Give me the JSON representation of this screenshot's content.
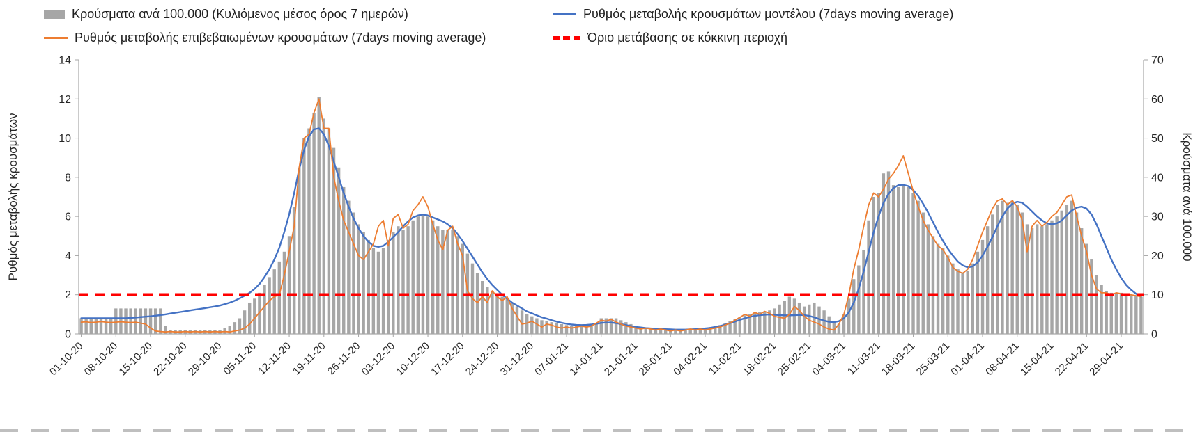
{
  "chart_data": {
    "type": "bar",
    "title": "",
    "days_per_tick": 7,
    "x_tick_labels": [
      "01-10-20",
      "08-10-20",
      "15-10-20",
      "22-10-20",
      "29-10-20",
      "05-11-20",
      "12-11-20",
      "19-11-20",
      "26-11-20",
      "03-12-20",
      "10-12-20",
      "17-12-20",
      "24-12-20",
      "31-12-20",
      "07-01-21",
      "14-01-21",
      "21-01-21",
      "28-01-21",
      "04-02-21",
      "11-02-21",
      "18-02-21",
      "25-02-21",
      "04-03-21",
      "11-03-21",
      "18-03-21",
      "25-03-21",
      "01-04-21",
      "08-04-21",
      "15-04-21",
      "22-04-21",
      "29-04-21"
    ],
    "left_axis": {
      "label": "Ρυθμός μεταβολής κρουσμάτων",
      "min": 0,
      "max": 14,
      "step": 2
    },
    "right_axis": {
      "label": "Κρούσματα ανά 100.000",
      "min": 0,
      "max": 70,
      "step": 10
    },
    "grid": false,
    "legend_position": "top",
    "series": [
      {
        "name": "Κρούσματα ανά 100.000 (Κυλιόμενος μέσος όρος 7 ημερών)",
        "type": "bar",
        "axis": "right",
        "color": "#a6a6a6",
        "values": [
          4,
          4,
          4,
          4,
          4,
          4,
          4,
          6.5,
          6.5,
          6.5,
          6.5,
          6.5,
          6.5,
          6.5,
          6.5,
          6.5,
          6.5,
          2,
          1,
          1,
          1,
          1,
          1,
          1,
          1,
          1,
          1,
          1,
          1,
          1.5,
          2,
          3,
          4,
          6,
          8,
          9,
          10.5,
          12.5,
          14.5,
          16.5,
          18.5,
          21,
          25,
          32.5,
          42.5,
          50,
          52.5,
          56.5,
          60.5,
          55,
          52.5,
          47.5,
          42.5,
          37.5,
          34,
          31,
          28,
          26,
          24,
          22,
          21,
          22,
          24,
          26,
          27.5,
          26.5,
          27.5,
          29,
          30,
          30.5,
          30,
          29,
          27.5,
          26.5,
          26.5,
          26.5,
          25,
          23,
          20.5,
          18,
          15.5,
          13.5,
          12,
          11,
          10,
          9.5,
          9,
          8,
          7,
          6,
          5,
          4.5,
          4,
          3.5,
          3.25,
          3,
          2.75,
          2.5,
          2.25,
          2.1,
          2,
          2.1,
          2.25,
          2.5,
          2.75,
          4,
          4,
          4,
          4,
          3.5,
          3,
          2.5,
          2,
          1.75,
          1.5,
          1.4,
          1.3,
          1.25,
          1.2,
          1.1,
          1,
          1,
          1.1,
          1.25,
          1.4,
          1.5,
          1.5,
          1.75,
          2,
          2.25,
          2.75,
          3.25,
          3.75,
          4.25,
          4.75,
          5,
          5.25,
          5.5,
          5.75,
          6,
          6.5,
          7.5,
          8.5,
          9.5,
          9,
          8,
          7,
          7.5,
          8,
          7,
          6,
          4.5,
          3,
          2.5,
          5,
          9,
          14,
          17.5,
          21.5,
          29,
          35,
          36,
          41,
          41.5,
          38,
          37.5,
          38,
          37.5,
          36,
          34,
          31,
          28,
          25,
          23,
          22,
          20,
          18,
          16.5,
          15.5,
          16,
          18,
          21,
          24,
          27.5,
          30.5,
          33,
          34,
          33.5,
          34,
          33,
          31,
          28,
          27,
          28,
          27.5,
          28,
          29,
          30,
          31.5,
          33,
          34,
          31,
          27,
          23,
          19,
          15,
          12.5,
          11,
          10.5,
          10.5,
          10.5,
          10,
          10,
          9.75,
          9.5
        ]
      },
      {
        "name": "Ρυθμός μεταβολής κρουσμάτων μοντέλου (7days moving average)",
        "type": "line",
        "axis": "left",
        "color": "#4472c4",
        "values": [
          0.8,
          0.8,
          0.8,
          0.8,
          0.8,
          0.8,
          0.8,
          0.8,
          0.8,
          0.8,
          0.82,
          0.84,
          0.86,
          0.88,
          0.9,
          0.93,
          0.96,
          1.0,
          1.04,
          1.08,
          1.12,
          1.16,
          1.2,
          1.24,
          1.28,
          1.32,
          1.36,
          1.4,
          1.45,
          1.52,
          1.6,
          1.7,
          1.82,
          1.95,
          2.1,
          2.3,
          2.55,
          2.9,
          3.3,
          3.8,
          4.4,
          5.2,
          6.1,
          7.2,
          8.4,
          9.4,
          10.1,
          10.45,
          10.5,
          10.2,
          9.6,
          8.8,
          8.0,
          7.2,
          6.5,
          5.9,
          5.4,
          5.0,
          4.7,
          4.5,
          4.45,
          4.5,
          4.7,
          4.95,
          5.2,
          5.5,
          5.75,
          5.95,
          6.05,
          6.1,
          6.05,
          5.95,
          5.85,
          5.75,
          5.6,
          5.4,
          5.1,
          4.75,
          4.35,
          3.95,
          3.55,
          3.15,
          2.8,
          2.5,
          2.25,
          2.0,
          1.8,
          1.6,
          1.45,
          1.3,
          1.15,
          1.05,
          0.95,
          0.85,
          0.78,
          0.7,
          0.63,
          0.57,
          0.52,
          0.48,
          0.46,
          0.45,
          0.46,
          0.48,
          0.52,
          0.56,
          0.58,
          0.58,
          0.55,
          0.5,
          0.45,
          0.4,
          0.36,
          0.33,
          0.3,
          0.28,
          0.26,
          0.25,
          0.24,
          0.23,
          0.22,
          0.22,
          0.22,
          0.23,
          0.24,
          0.26,
          0.28,
          0.31,
          0.35,
          0.4,
          0.47,
          0.55,
          0.63,
          0.72,
          0.8,
          0.87,
          0.92,
          0.96,
          0.98,
          0.99,
          0.98,
          0.96,
          0.95,
          0.95,
          0.96,
          0.97,
          0.96,
          0.92,
          0.85,
          0.76,
          0.68,
          0.62,
          0.6,
          0.65,
          0.8,
          1.1,
          1.6,
          2.3,
          3.2,
          4.2,
          5.2,
          6.0,
          6.7,
          7.15,
          7.45,
          7.6,
          7.62,
          7.55,
          7.35,
          7.05,
          6.65,
          6.2,
          5.7,
          5.2,
          4.75,
          4.35,
          4.0,
          3.7,
          3.5,
          3.4,
          3.45,
          3.65,
          4.0,
          4.45,
          4.95,
          5.5,
          6.0,
          6.4,
          6.65,
          6.75,
          6.7,
          6.5,
          6.25,
          6.0,
          5.8,
          5.65,
          5.6,
          5.65,
          5.8,
          6.05,
          6.3,
          6.45,
          6.5,
          6.4,
          6.1,
          5.6,
          5.0,
          4.4,
          3.8,
          3.3,
          2.85,
          2.5,
          2.25,
          2.05,
          1.9
        ]
      },
      {
        "name": "Ρυθμός μεταβολής επιβεβαιωμένων κρουσμάτων (7days moving average)",
        "type": "line",
        "axis": "left",
        "color": "#ed7d31",
        "values": [
          0.6,
          0.62,
          0.58,
          0.6,
          0.63,
          0.6,
          0.58,
          0.6,
          0.62,
          0.6,
          0.58,
          0.6,
          0.55,
          0.5,
          0.3,
          0.15,
          0.12,
          0.1,
          0.12,
          0.1,
          0.1,
          0.12,
          0.1,
          0.12,
          0.1,
          0.12,
          0.1,
          0.12,
          0.1,
          0.12,
          0.1,
          0.15,
          0.2,
          0.3,
          0.5,
          0.8,
          1.1,
          1.4,
          1.7,
          1.9,
          2.0,
          3.0,
          4.2,
          5.5,
          8.5,
          10.0,
          10.2,
          11.3,
          12.0,
          10.5,
          10.5,
          8.0,
          6.8,
          5.8,
          5.2,
          4.6,
          4.0,
          3.8,
          4.2,
          4.6,
          5.5,
          5.8,
          4.5,
          5.9,
          6.1,
          5.4,
          5.6,
          6.3,
          6.6,
          7.0,
          6.5,
          5.6,
          4.8,
          4.3,
          5.3,
          5.5,
          4.6,
          4.0,
          2.2,
          1.8,
          1.6,
          1.9,
          1.6,
          2.2,
          1.9,
          1.7,
          1.9,
          1.3,
          0.9,
          0.5,
          0.55,
          0.65,
          0.5,
          0.35,
          0.5,
          0.45,
          0.35,
          0.3,
          0.35,
          0.3,
          0.35,
          0.4,
          0.35,
          0.4,
          0.55,
          0.7,
          0.65,
          0.75,
          0.6,
          0.5,
          0.4,
          0.35,
          0.3,
          0.25,
          0.3,
          0.25,
          0.2,
          0.25,
          0.2,
          0.15,
          0.2,
          0.15,
          0.2,
          0.25,
          0.2,
          0.25,
          0.2,
          0.25,
          0.3,
          0.35,
          0.45,
          0.55,
          0.7,
          0.85,
          1.0,
          0.9,
          1.1,
          1.0,
          1.15,
          1.05,
          0.9,
          0.85,
          0.8,
          1.0,
          1.4,
          1.2,
          0.9,
          0.7,
          0.6,
          0.5,
          0.35,
          0.25,
          0.2,
          0.5,
          1.0,
          2.0,
          3.3,
          4.3,
          5.5,
          6.6,
          7.2,
          7.0,
          7.4,
          7.9,
          8.2,
          8.6,
          9.1,
          8.2,
          7.3,
          6.5,
          5.8,
          5.3,
          4.9,
          4.5,
          4.3,
          3.9,
          3.4,
          3.2,
          3.1,
          3.3,
          3.8,
          4.5,
          5.2,
          5.8,
          6.4,
          6.8,
          6.9,
          6.6,
          6.8,
          6.5,
          5.8,
          4.2,
          5.5,
          5.8,
          5.5,
          5.7,
          6.0,
          6.2,
          6.6,
          7.0,
          7.1,
          6.0,
          5.0,
          4.2,
          3.0,
          2.3,
          2.1,
          2.1,
          2.0,
          2.1,
          2.05,
          2.0,
          2.0,
          1.95,
          1.9
        ]
      },
      {
        "name": "Όριο μετάβασης σε κόκκινη περιοχή",
        "type": "hline",
        "axis": "left",
        "color": "#ff0000",
        "value": 2
      }
    ]
  }
}
